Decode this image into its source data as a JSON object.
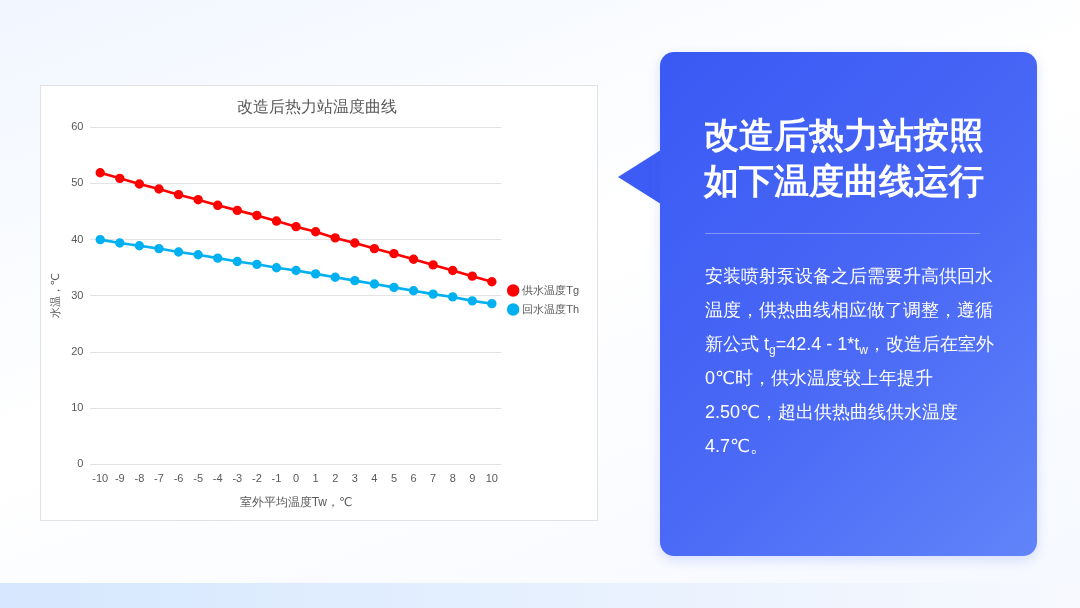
{
  "chart_data": {
    "type": "line",
    "title": "改造后热力站温度曲线",
    "xlabel": "室外平均温度Tw，℃",
    "ylabel": "水温，℃",
    "categories": [
      "-10",
      "-9",
      "-8",
      "-7",
      "-6",
      "-5",
      "-4",
      "-3",
      "-2",
      "-1",
      "0",
      "1",
      "2",
      "3",
      "4",
      "5",
      "6",
      "7",
      "8",
      "9",
      "10"
    ],
    "series": [
      {
        "name": "供水温度Tg",
        "color": "#ff0000",
        "values": [
          51.9,
          50.9,
          49.9,
          49.0,
          48.0,
          47.1,
          46.1,
          45.2,
          44.3,
          43.3,
          42.3,
          41.4,
          40.3,
          39.4,
          38.4,
          37.5,
          36.5,
          35.5,
          34.5,
          33.5,
          32.5
        ]
      },
      {
        "name": "回水温度Th",
        "color": "#00b0f0",
        "values": [
          40.0,
          39.4,
          38.9,
          38.4,
          37.8,
          37.3,
          36.7,
          36.1,
          35.6,
          35.0,
          34.5,
          33.9,
          33.3,
          32.7,
          32.1,
          31.5,
          30.9,
          30.3,
          29.8,
          29.1,
          28.6
        ]
      }
    ],
    "ylim": [
      0,
      60
    ],
    "yticks": [
      0,
      10,
      20,
      30,
      40,
      50,
      60
    ],
    "grid": "y",
    "legend": "right",
    "marker": "circle",
    "line_style": "solid",
    "annotations": [
      "改造后热力站按照如下温度曲线运行",
      "安装喷射泵设备之后需要升高供回水温度，供热曲线相应做了调整，遵循新公式 t$_{g}$=42.4 - 1*t$_{w}$，改造后在室外0℃时，供水温度较上年提升2.50℃，超出供热曲线供水温度4.7℃。"
    ]
  }
}
